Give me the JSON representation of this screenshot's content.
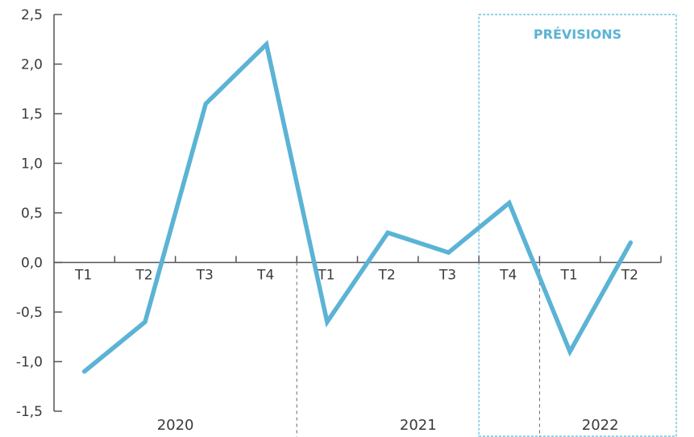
{
  "chart_data": {
    "type": "line",
    "categories": [
      "T1",
      "T2",
      "T3",
      "T4",
      "T1",
      "T2",
      "T3",
      "T4",
      "T1",
      "T2"
    ],
    "years": [
      {
        "label": "2020",
        "start_index": 0,
        "end_index": 3
      },
      {
        "label": "2021",
        "start_index": 4,
        "end_index": 7
      },
      {
        "label": "2022",
        "start_index": 8,
        "end_index": 9
      }
    ],
    "series": [
      {
        "values": [
          -1.1,
          -0.6,
          1.6,
          2.2,
          -0.6,
          0.3,
          0.1,
          0.6,
          -0.9,
          0.2
        ]
      }
    ],
    "ylim": [
      -1.5,
      2.5
    ],
    "yticks": [
      {
        "value": 2.5,
        "label": "2,5"
      },
      {
        "value": 2.0,
        "label": "2,0"
      },
      {
        "value": 1.5,
        "label": "1,5"
      },
      {
        "value": 1.0,
        "label": "1,0"
      },
      {
        "value": 0.5,
        "label": "0,5"
      },
      {
        "value": 0.0,
        "label": "0,0"
      },
      {
        "value": -0.5,
        "label": "-0,5"
      },
      {
        "value": -1.0,
        "label": "-1,0"
      },
      {
        "value": -1.5,
        "label": "-1,5"
      }
    ],
    "forecast": {
      "label": "PRÉVISIONS",
      "from_category_index": 7
    },
    "line_color": "#5bb3d5",
    "axis_color": "#555555",
    "forecast_border_color": "#5bb3d5",
    "grid": false
  }
}
